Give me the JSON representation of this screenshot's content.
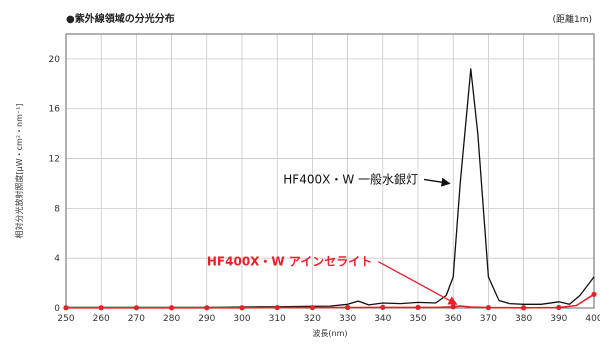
{
  "chart_data": {
    "type": "line",
    "title": "●紫外線領域の分光分布",
    "note": "(距離1m)",
    "xlabel": "波長(nm)",
    "ylabel": "相対分光放射照度[μW・cm²・nm⁻¹]",
    "xlim": [
      250,
      400
    ],
    "ylim": [
      0,
      22
    ],
    "xticks": [
      250,
      260,
      270,
      280,
      290,
      300,
      310,
      320,
      330,
      340,
      350,
      360,
      370,
      380,
      390,
      400
    ],
    "yticks": [
      0,
      4,
      8,
      12,
      16,
      20
    ],
    "grid": true,
    "series": [
      {
        "name": "HF400X・W 一般水銀灯",
        "color": "#111111",
        "x": [
          250,
          255,
          260,
          265,
          270,
          275,
          280,
          285,
          290,
          295,
          300,
          305,
          310,
          315,
          320,
          325,
          330,
          333,
          336,
          340,
          345,
          350,
          355,
          358,
          360,
          362,
          365,
          367,
          370,
          373,
          376,
          380,
          385,
          390,
          393,
          396,
          400
        ],
        "y": [
          0.05,
          0.05,
          0.05,
          0.05,
          0.05,
          0.05,
          0.05,
          0.05,
          0.05,
          0.06,
          0.08,
          0.1,
          0.1,
          0.12,
          0.14,
          0.15,
          0.3,
          0.55,
          0.25,
          0.4,
          0.35,
          0.45,
          0.4,
          1.0,
          2.5,
          10.0,
          19.2,
          14.0,
          2.5,
          0.6,
          0.35,
          0.3,
          0.3,
          0.5,
          0.3,
          1.0,
          2.5
        ]
      },
      {
        "name": "HF400X・W アインセライト",
        "color": "#e8202a",
        "x": [
          250,
          260,
          270,
          280,
          290,
          300,
          310,
          320,
          330,
          340,
          350,
          355,
          360,
          362,
          365,
          370,
          380,
          390,
          395,
          400
        ],
        "y": [
          0.02,
          0.02,
          0.02,
          0.02,
          0.02,
          0.02,
          0.03,
          0.03,
          0.04,
          0.05,
          0.05,
          0.05,
          0.1,
          0.15,
          0.08,
          0.03,
          0.02,
          0.04,
          0.2,
          1.1
        ]
      }
    ],
    "annotations": [
      {
        "text": "HF400X・W 一般水銀灯",
        "color": "#111111",
        "x": 350,
        "y": 10,
        "arrow_to": [
          359,
          10
        ]
      },
      {
        "text": "HF400X・W アインセライト",
        "color": "#e8202a",
        "x": 337,
        "y": 3.4,
        "arrow_to": [
          361,
          0.3
        ]
      }
    ]
  }
}
